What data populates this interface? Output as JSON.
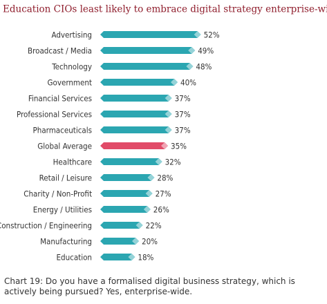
{
  "chart_data": {
    "type": "bar",
    "orientation": "horizontal",
    "title": "Education CIOs least likely to embrace digital strategy enterprise-wide",
    "categories": [
      "Advertising",
      "Broadcast / Media",
      "Technology",
      "Government",
      "Financial Services",
      "Professional Services",
      "Pharmaceuticals",
      "Global Average",
      "Healthcare",
      "Retail / Leisure",
      "Charity / Non-Profit",
      "Energy / Utilities",
      "Construction / Engineering",
      "Manufacturing",
      "Education"
    ],
    "values": [
      52,
      49,
      48,
      40,
      37,
      37,
      37,
      35,
      32,
      28,
      27,
      26,
      22,
      20,
      18
    ],
    "value_labels": [
      "52%",
      "49%",
      "48%",
      "40%",
      "37%",
      "37%",
      "37%",
      "35%",
      "32%",
      "28%",
      "27%",
      "26%",
      "22%",
      "20%",
      "18%"
    ],
    "colors": [
      "#2ba6b1",
      "#2ba6b1",
      "#2ba6b1",
      "#2ba6b1",
      "#2ba6b1",
      "#2ba6b1",
      "#2ba6b1",
      "#e14b68",
      "#2ba6b1",
      "#2ba6b1",
      "#2ba6b1",
      "#2ba6b1",
      "#2ba6b1",
      "#2ba6b1",
      "#2ba6b1"
    ],
    "caption": "Chart 19: Do you have a formalised digital business strategy, which is actively being pursued? Yes, enterprise-wide."
  }
}
